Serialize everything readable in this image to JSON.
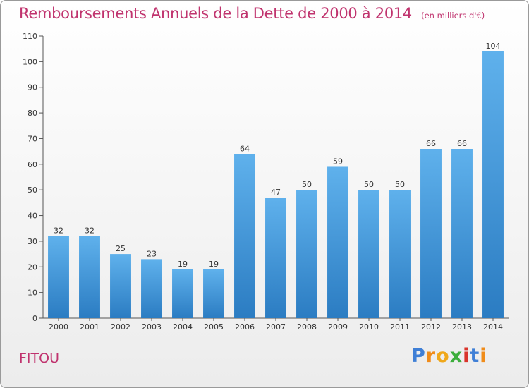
{
  "title": "Remboursements Annuels de la Dette de 2000 à 2014",
  "subtitle": "(en milliers d'€)",
  "commune": "FITOU",
  "logo": {
    "text": "Proxiti",
    "letter_colors": [
      "#3f7fd6",
      "#f08c1a",
      "#f0a81a",
      "#3cae3c",
      "#d9342b",
      "#3f7fd6",
      "#f08c1a"
    ]
  },
  "colors": {
    "title": "#c0336e",
    "bar_top": "#5fb1ec",
    "bar_bottom": "#2b7cc2"
  },
  "chart_data": {
    "type": "bar",
    "title": "Remboursements Annuels de la Dette de 2000 à 2014",
    "subtitle": "(en milliers d'€)",
    "categories": [
      "2000",
      "2001",
      "2002",
      "2003",
      "2004",
      "2005",
      "2006",
      "2007",
      "2008",
      "2009",
      "2010",
      "2011",
      "2012",
      "2013",
      "2014"
    ],
    "values": [
      32,
      32,
      25,
      23,
      19,
      19,
      64,
      47,
      50,
      59,
      50,
      50,
      66,
      66,
      104
    ],
    "ylim": [
      0,
      110
    ],
    "yticks": [
      0,
      10,
      20,
      30,
      40,
      50,
      60,
      70,
      80,
      90,
      100,
      110
    ],
    "grid": false,
    "data_labels": true
  }
}
